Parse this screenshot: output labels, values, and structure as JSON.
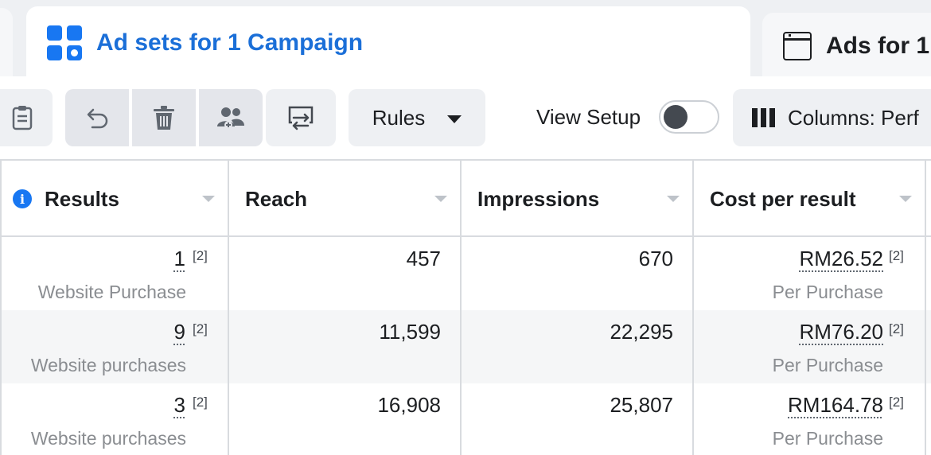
{
  "tabs": {
    "active": {
      "title": "Ad sets for 1 Campaign",
      "icon": "grid-icon"
    },
    "inactive": {
      "title": "Ads for 1",
      "icon": "window-icon"
    }
  },
  "toolbar": {
    "rules_label": "Rules",
    "view_setup_label": "View Setup",
    "view_setup_on": false,
    "columns_label": "Columns: Perf"
  },
  "table": {
    "columns": [
      "Results",
      "Reach",
      "Impressions",
      "Cost per result"
    ],
    "footnote": "[2]",
    "rows": [
      {
        "results": "1",
        "results_label": "Website Purchase",
        "reach": "457",
        "impressions": "670",
        "cost": "RM26.52",
        "cost_label": "Per Purchase"
      },
      {
        "results": "9",
        "results_label": "Website purchases",
        "reach": "11,599",
        "impressions": "22,295",
        "cost": "RM76.20",
        "cost_label": "Per Purchase"
      },
      {
        "results": "3",
        "results_label": "Website purchases",
        "reach": "16,908",
        "impressions": "25,807",
        "cost": "RM164.78",
        "cost_label": "Per Purchase"
      }
    ]
  },
  "colors": {
    "accent": "#1877f2",
    "tab_title": "#1b6fd8",
    "muted_text": "#8a8d91"
  }
}
